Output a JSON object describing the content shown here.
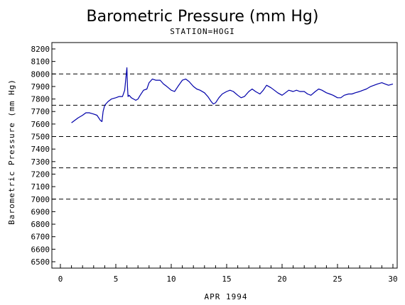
{
  "chart_data": {
    "type": "line",
    "title": "Barometric Pressure (mm Hg)",
    "subtitle": "STATION=HOGI",
    "xlabel": "APR 1994",
    "ylabel": "Barometric Pressure (mm Hg)",
    "xlim": [
      0,
      30
    ],
    "ylim": [
      6500,
      8200
    ],
    "x_ticks": [
      0,
      5,
      10,
      15,
      20,
      25,
      30
    ],
    "y_ticks": [
      6500,
      6600,
      6700,
      6800,
      6900,
      7000,
      7100,
      7200,
      7300,
      7400,
      7500,
      7600,
      7700,
      7800,
      7900,
      8000,
      8100,
      8200
    ],
    "reference_lines": [
      7000,
      7250,
      7500,
      7750,
      8000
    ],
    "grid": false,
    "line_color": "#0000aa",
    "series": [
      {
        "x": [
          1.0,
          1.3,
          1.6,
          2.0,
          2.3,
          2.6,
          3.0,
          3.3,
          3.6,
          3.75,
          3.85,
          4.0,
          4.3,
          4.6,
          5.0,
          5.3,
          5.6,
          5.8,
          5.9,
          6.0,
          6.05,
          6.1,
          6.2,
          6.4,
          6.6,
          6.8,
          7.0,
          7.2,
          7.5,
          7.8,
          8.0,
          8.3,
          8.6,
          9.0,
          9.3,
          9.6,
          10.0,
          10.3,
          10.6,
          11.0,
          11.3,
          11.6,
          12.0,
          12.3,
          12.6,
          13.0,
          13.3,
          13.6,
          13.8,
          14.0,
          14.3,
          14.6,
          15.0,
          15.3,
          15.6,
          16.0,
          16.3,
          16.6,
          17.0,
          17.3,
          17.6,
          18.0,
          18.3,
          18.6,
          19.0,
          19.3,
          19.6,
          20.0,
          20.3,
          20.6,
          21.0,
          21.3,
          21.6,
          22.0,
          22.3,
          22.6,
          23.0,
          23.3,
          23.6,
          24.0,
          24.3,
          24.6,
          25.0,
          25.3,
          25.6,
          26.0,
          26.3,
          26.6,
          27.0,
          27.3,
          27.6,
          28.0,
          28.3,
          28.6,
          29.0,
          29.3,
          29.6,
          30.0
        ],
        "y": [
          7610,
          7630,
          7650,
          7670,
          7690,
          7690,
          7680,
          7670,
          7630,
          7620,
          7700,
          7750,
          7780,
          7800,
          7810,
          7820,
          7820,
          7870,
          7960,
          8050,
          7900,
          7820,
          7830,
          7810,
          7800,
          7790,
          7800,
          7830,
          7870,
          7880,
          7930,
          7960,
          7950,
          7950,
          7920,
          7900,
          7870,
          7860,
          7900,
          7950,
          7960,
          7940,
          7900,
          7880,
          7870,
          7850,
          7820,
          7780,
          7760,
          7770,
          7810,
          7840,
          7860,
          7870,
          7860,
          7830,
          7810,
          7820,
          7860,
          7880,
          7860,
          7840,
          7870,
          7910,
          7890,
          7870,
          7850,
          7830,
          7850,
          7870,
          7860,
          7870,
          7860,
          7860,
          7840,
          7830,
          7860,
          7880,
          7870,
          7850,
          7840,
          7830,
          7810,
          7810,
          7830,
          7840,
          7840,
          7850,
          7860,
          7870,
          7880,
          7900,
          7910,
          7920,
          7930,
          7920,
          7910,
          7920
        ]
      }
    ]
  }
}
